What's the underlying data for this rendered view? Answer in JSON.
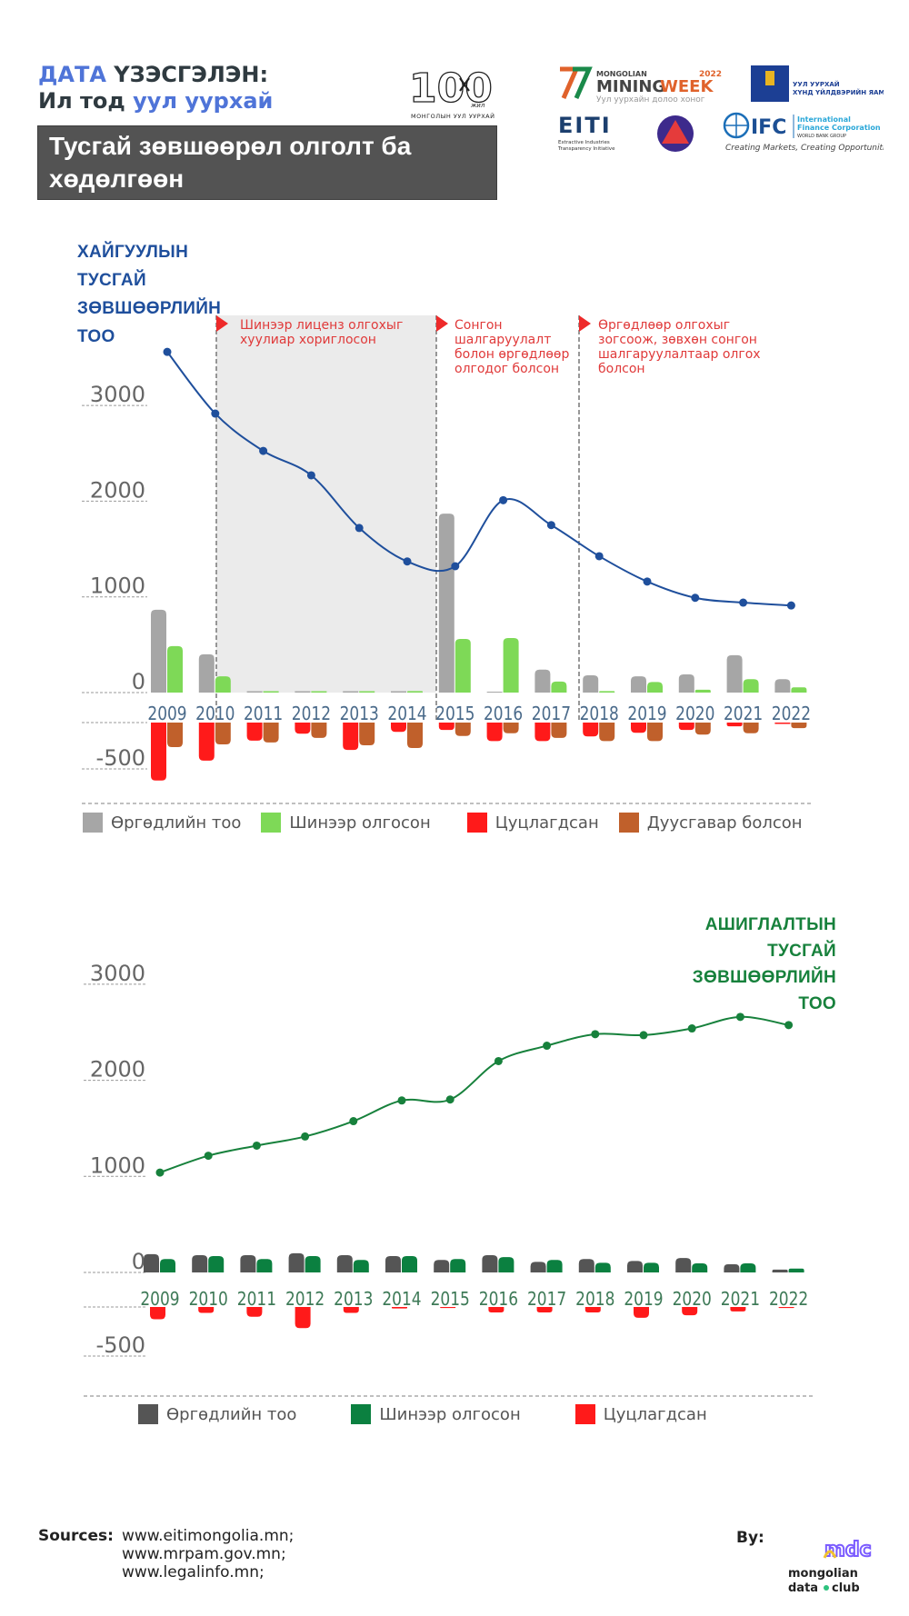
{
  "header": {
    "line1_accent": "ДАТА",
    "line1_rest": " ҮЗЭСГЭЛЭН:",
    "line2_plain": "Ил тод ",
    "line2_accent": "уул уурхай",
    "title_box": "Тусгай зөвшөөрөл олголт ба хөдөлгөөн",
    "logo100_caption": "МОНГОЛЫН УУЛ УУРХАЙ",
    "logo100_tag": "жил",
    "logo100_number": "100"
  },
  "partners": {
    "mining_week_top": "MONGOLIAN",
    "mining_week_year": "2022",
    "mining_week_main_a": "MINING",
    "mining_week_main_b": "WEEK",
    "mining_week_sub": "Уул уурхайн долоо хоног",
    "ministry_line1": "УУЛ УУРХАЙ",
    "ministry_line2": "ХҮНД ҮЙЛДВЭРИЙН ЯАМ",
    "eiti_name": "EITI",
    "eiti_sub1": "Extractive Industries",
    "eiti_sub2": "Transparency Initiative",
    "ifc_name": "IFC",
    "ifc_line1": "International",
    "ifc_line2": "Finance Corporation",
    "ifc_line3": "WORLD BANK GROUP",
    "ifc_tagline": "Creating Markets, Creating Opportunities"
  },
  "colors": {
    "blue_accent": "#4f74d8",
    "chart1_line": "#1f4f9c",
    "chart2_line": "#17813c",
    "applications": "#a6a6a6",
    "new_granted": "#7ed957",
    "revoked": "#ff1a1a",
    "expired": "#c0602b",
    "applications_dark": "#555555",
    "new_granted_dark": "#0b8040",
    "annotation": "#e03a3a",
    "shaded_period": "#ebebeb"
  },
  "chart_data": [
    {
      "type": "bar",
      "subtype": "bar+line combo",
      "title": "ХАЙГУУЛЫН ТУСГАЙ ЗӨВШӨӨРЛИЙН ТОО",
      "title_lines": [
        "ХАЙГУУЛЫН",
        "ТУСГАЙ",
        "ЗӨВШӨӨРЛИЙН",
        "ТОО"
      ],
      "categories": [
        "2009",
        "2010",
        "2011",
        "2012",
        "2013",
        "2014",
        "2015",
        "2016",
        "2017",
        "2018",
        "2019",
        "2020",
        "2021",
        "2022"
      ],
      "line": {
        "name": "Хайгуулын тусгай зөвшөөрлийн тоо",
        "values": [
          3560,
          2915,
          2525,
          2270,
          1720,
          1370,
          1320,
          2010,
          1750,
          1425,
          1160,
          990,
          940,
          910
        ]
      },
      "series": [
        {
          "name": "Өргөдлийн тоо",
          "values": [
            865,
            400,
            0,
            0,
            0,
            5,
            1870,
            10,
            240,
            180,
            170,
            190,
            390,
            140
          ]
        },
        {
          "name": "Шинээр олгосон",
          "values": [
            485,
            170,
            0,
            0,
            0,
            15,
            560,
            570,
            115,
            15,
            110,
            30,
            140,
            55
          ]
        },
        {
          "name": "Цуцлагдсан",
          "values": [
            -625,
            -410,
            -195,
            -120,
            -295,
            -100,
            -80,
            -200,
            -200,
            -150,
            -110,
            -80,
            -40,
            -5
          ]
        },
        {
          "name": "Дуусгавар болсон",
          "values": [
            -265,
            -235,
            -215,
            -165,
            -245,
            -275,
            -145,
            -115,
            -165,
            -200,
            -200,
            -130,
            -115,
            -60
          ]
        }
      ],
      "yticks_positive": [
        "0",
        "1000",
        "2000",
        "3000"
      ],
      "yticks_negative": [
        "-500"
      ],
      "ylim": [
        -650,
        3600
      ],
      "grid": false,
      "legend_position": "bottom",
      "legend": [
        "Өргөдлийн тоо",
        "Шинээр олгосон",
        "Цуцлагдсан",
        "Дуусгавар болсон"
      ],
      "shaded_period": [
        "2010",
        "2015"
      ],
      "annotations": [
        {
          "at": "2010",
          "text_lines": [
            "Шинээр лиценз олгохыг",
            "хуулиар хориглосон"
          ]
        },
        {
          "at": "2015",
          "text_lines": [
            "Сонгон",
            "шалгаруулалт",
            "болон өргөдлөөр",
            "олгодог болсон"
          ]
        },
        {
          "at": "2018",
          "text_lines": [
            "Өргөдлөөр олгохыг",
            "зогсоож, зөвхөн сонгон",
            "шалгаруулалтаар олгох",
            "болсон"
          ]
        }
      ]
    },
    {
      "type": "bar",
      "subtype": "bar+line combo",
      "title": "АШИГЛАЛТЫН ТУСГАЙ ЗӨВШӨӨРЛИЙН ТОО",
      "title_lines": [
        "АШИГЛАЛТЫН",
        "ТУСГАЙ",
        "ЗӨВШӨӨРЛИЙН",
        "ТОО"
      ],
      "categories": [
        "2009",
        "2010",
        "2011",
        "2012",
        "2013",
        "2014",
        "2015",
        "2016",
        "2017",
        "2018",
        "2019",
        "2020",
        "2021",
        "2022"
      ],
      "line": {
        "name": "Ашиглалтын тусгай зөвшөөрлийн тоо",
        "values": [
          1040,
          1215,
          1320,
          1415,
          1575,
          1790,
          1800,
          2200,
          2360,
          2480,
          2470,
          2540,
          2660,
          2575
        ]
      },
      "series": [
        {
          "name": "Өргөдлийн тоо",
          "values": [
            190,
            180,
            180,
            200,
            180,
            170,
            130,
            180,
            110,
            140,
            120,
            150,
            85,
            30
          ]
        },
        {
          "name": "Шинээр олгосон",
          "values": [
            140,
            170,
            140,
            170,
            130,
            170,
            140,
            160,
            130,
            100,
            100,
            95,
            95,
            40
          ]
        },
        {
          "name": "Цуцлагдсан",
          "values": [
            -125,
            -60,
            -100,
            -215,
            -60,
            -15,
            -10,
            -55,
            -55,
            -55,
            -110,
            -85,
            -45,
            -10
          ]
        }
      ],
      "yticks_positive": [
        "0",
        "1000",
        "2000",
        "3000"
      ],
      "yticks_negative": [
        "-500"
      ],
      "ylim": [
        -500,
        3000
      ],
      "grid": false,
      "legend_position": "bottom",
      "legend": [
        "Өргөдлийн тоо",
        "Шинээр олгосон",
        "Цуцлагдсан"
      ]
    }
  ],
  "footer": {
    "sources_label": "Sources:",
    "sources": [
      "www.eitimongolia.mn;",
      "www.mrpam.gov.mn;",
      "www.legalinfo.mn;"
    ],
    "by_label": "By:",
    "org_line1": "mongolian",
    "org_line2a": "data",
    "org_line2b": "club",
    "org_logo": "mdc"
  }
}
